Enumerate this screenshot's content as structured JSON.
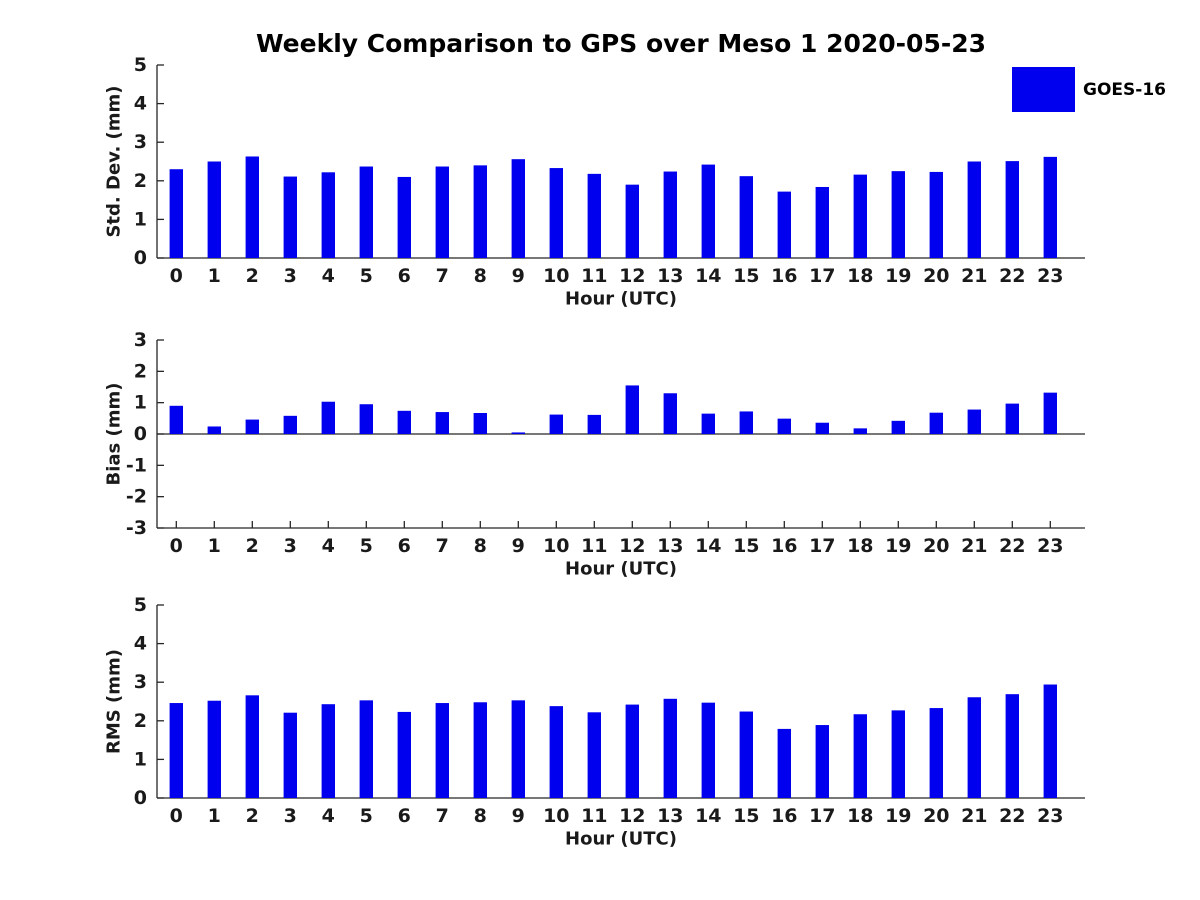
{
  "title": "Weekly Comparison to GPS over Meso 1 2020-05-23",
  "legend": {
    "label": "GOES-16",
    "color": "#0000ee"
  },
  "colors": {
    "bar": "#0000ee",
    "axis": "#262626",
    "text": "#1a1a1a"
  },
  "chart_data": [
    {
      "id": "std-dev",
      "type": "bar",
      "title": "",
      "xlabel": "Hour (UTC)",
      "ylabel": "Std. Dev. (mm)",
      "ylim": [
        0,
        5
      ],
      "yticks": [
        0,
        1,
        2,
        3,
        4,
        5
      ],
      "legend_position": "outside-top-right",
      "grid": false,
      "categories": [
        "0",
        "1",
        "2",
        "3",
        "4",
        "5",
        "6",
        "7",
        "8",
        "9",
        "10",
        "11",
        "12",
        "13",
        "14",
        "15",
        "16",
        "17",
        "18",
        "19",
        "20",
        "21",
        "22",
        "23"
      ],
      "values": [
        2.3,
        2.5,
        2.63,
        2.11,
        2.22,
        2.37,
        2.1,
        2.37,
        2.4,
        2.56,
        2.33,
        2.18,
        1.9,
        2.24,
        2.42,
        2.12,
        1.72,
        1.84,
        2.16,
        2.25,
        2.23,
        2.5,
        2.51,
        2.62
      ]
    },
    {
      "id": "bias",
      "type": "bar",
      "title": "",
      "xlabel": "Hour (UTC)",
      "ylabel": "Bias (mm)",
      "ylim": [
        -3,
        3
      ],
      "yticks": [
        -3,
        -2,
        -1,
        0,
        1,
        2,
        3
      ],
      "grid": false,
      "categories": [
        "0",
        "1",
        "2",
        "3",
        "4",
        "5",
        "6",
        "7",
        "8",
        "9",
        "10",
        "11",
        "12",
        "13",
        "14",
        "15",
        "16",
        "17",
        "18",
        "19",
        "20",
        "21",
        "22",
        "23"
      ],
      "values": [
        0.9,
        0.24,
        0.46,
        0.58,
        1.03,
        0.95,
        0.74,
        0.7,
        0.67,
        0.05,
        0.62,
        0.61,
        1.55,
        1.3,
        0.65,
        0.72,
        0.49,
        0.36,
        0.18,
        0.42,
        0.68,
        0.78,
        0.97,
        1.32
      ]
    },
    {
      "id": "rms",
      "type": "bar",
      "title": "",
      "xlabel": "Hour (UTC)",
      "ylabel": "RMS (mm)",
      "ylim": [
        0,
        5
      ],
      "yticks": [
        0,
        1,
        2,
        3,
        4,
        5
      ],
      "grid": false,
      "categories": [
        "0",
        "1",
        "2",
        "3",
        "4",
        "5",
        "6",
        "7",
        "8",
        "9",
        "10",
        "11",
        "12",
        "13",
        "14",
        "15",
        "16",
        "17",
        "18",
        "19",
        "20",
        "21",
        "22",
        "23"
      ],
      "values": [
        2.46,
        2.52,
        2.66,
        2.21,
        2.43,
        2.53,
        2.23,
        2.46,
        2.48,
        2.53,
        2.38,
        2.22,
        2.42,
        2.57,
        2.47,
        2.24,
        1.79,
        1.89,
        2.17,
        2.27,
        2.33,
        2.61,
        2.69,
        2.94
      ]
    }
  ]
}
